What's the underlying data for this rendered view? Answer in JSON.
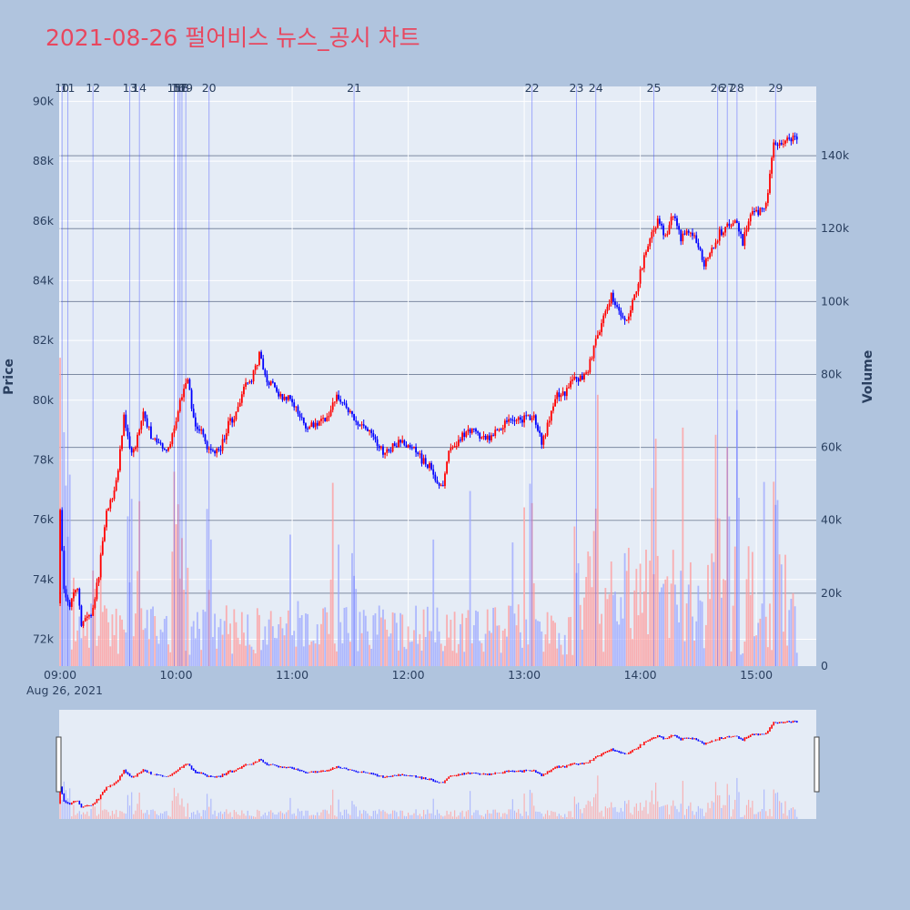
{
  "title": "2021-08-26 펄어비스 뉴스_공시 차트",
  "chart_data": {
    "type": "candlestick",
    "title": "2021-08-26 펄어비스 뉴스_공시 차트",
    "date_label": "Aug 26, 2021",
    "y_price_label": "Price",
    "y_volume_label": "Volume",
    "price_range": [
      71100,
      90500
    ],
    "price_ticks": [
      72000,
      74000,
      76000,
      78000,
      80000,
      82000,
      84000,
      86000,
      88000,
      90000
    ],
    "price_tick_labels": [
      "72k",
      "74k",
      "76k",
      "78k",
      "80k",
      "82k",
      "84k",
      "86k",
      "88k",
      "90k"
    ],
    "volume_range": [
      0,
      159000
    ],
    "volume_ticks": [
      0,
      20000,
      40000,
      60000,
      80000,
      100000,
      120000,
      140000
    ],
    "volume_tick_labels": [
      "0",
      "20k",
      "40k",
      "60k",
      "80k",
      "100k",
      "120k",
      "140k"
    ],
    "time_range_minutes": [
      -0.5,
      391
    ],
    "x_ticks": [
      "09:00",
      "10:00",
      "11:00",
      "12:00",
      "13:00",
      "14:00",
      "15:00"
    ],
    "increasing_color": "#ff0000",
    "decreasing_color": "#0000ff",
    "news_markers": [
      {
        "label": "10",
        "time": "09:01"
      },
      {
        "label": "11",
        "time": "09:04"
      },
      {
        "label": "12",
        "time": "09:17"
      },
      {
        "label": "13",
        "time": "09:36"
      },
      {
        "label": "14",
        "time": "09:41"
      },
      {
        "label": "15",
        "time": "09:59"
      },
      {
        "label": "16",
        "time": "10:01"
      },
      {
        "label": "17",
        "time": "10:02"
      },
      {
        "label": "18",
        "time": "10:03"
      },
      {
        "label": "19",
        "time": "10:05"
      },
      {
        "label": "20",
        "time": "10:17"
      },
      {
        "label": "21",
        "time": "11:32"
      },
      {
        "label": "22",
        "time": "13:04"
      },
      {
        "label": "23",
        "time": "13:27"
      },
      {
        "label": "24",
        "time": "13:37"
      },
      {
        "label": "25",
        "time": "14:07"
      },
      {
        "label": "26",
        "time": "14:40"
      },
      {
        "label": "27",
        "time": "14:45"
      },
      {
        "label": "28",
        "time": "14:50"
      },
      {
        "label": "29",
        "time": "15:10"
      }
    ],
    "price_path": [
      [
        0,
        73200
      ],
      [
        1,
        76200
      ],
      [
        3,
        73600
      ],
      [
        6,
        73200
      ],
      [
        10,
        73800
      ],
      [
        12,
        72400
      ],
      [
        14,
        72600
      ],
      [
        18,
        73000
      ],
      [
        21,
        74200
      ],
      [
        25,
        76200
      ],
      [
        30,
        77200
      ],
      [
        34,
        79400
      ],
      [
        38,
        78200
      ],
      [
        40,
        78500
      ],
      [
        44,
        79600
      ],
      [
        48,
        78800
      ],
      [
        52,
        78500
      ],
      [
        56,
        78300
      ],
      [
        60,
        79000
      ],
      [
        64,
        80200
      ],
      [
        67,
        80800
      ],
      [
        70,
        79300
      ],
      [
        74,
        79000
      ],
      [
        78,
        78300
      ],
      [
        81,
        78200
      ],
      [
        84,
        78400
      ],
      [
        88,
        79200
      ],
      [
        92,
        79500
      ],
      [
        96,
        80400
      ],
      [
        100,
        80700
      ],
      [
        104,
        81500
      ],
      [
        108,
        80700
      ],
      [
        112,
        80400
      ],
      [
        116,
        80000
      ],
      [
        120,
        80100
      ],
      [
        124,
        79600
      ],
      [
        128,
        79000
      ],
      [
        132,
        79200
      ],
      [
        136,
        79300
      ],
      [
        140,
        79500
      ],
      [
        144,
        80200
      ],
      [
        148,
        79800
      ],
      [
        152,
        79500
      ],
      [
        156,
        79200
      ],
      [
        160,
        79000
      ],
      [
        164,
        78600
      ],
      [
        168,
        78300
      ],
      [
        172,
        78400
      ],
      [
        176,
        78600
      ],
      [
        180,
        78500
      ],
      [
        184,
        78400
      ],
      [
        188,
        78000
      ],
      [
        192,
        77800
      ],
      [
        196,
        77300
      ],
      [
        199,
        77200
      ],
      [
        202,
        78200
      ],
      [
        206,
        78500
      ],
      [
        210,
        78900
      ],
      [
        214,
        79000
      ],
      [
        218,
        78800
      ],
      [
        222,
        78700
      ],
      [
        226,
        78900
      ],
      [
        230,
        79200
      ],
      [
        234,
        79400
      ],
      [
        238,
        79300
      ],
      [
        242,
        79400
      ],
      [
        246,
        79500
      ],
      [
        250,
        78600
      ],
      [
        254,
        79300
      ],
      [
        258,
        80200
      ],
      [
        262,
        80200
      ],
      [
        266,
        80800
      ],
      [
        270,
        80700
      ],
      [
        274,
        81000
      ],
      [
        278,
        82000
      ],
      [
        282,
        82800
      ],
      [
        286,
        83500
      ],
      [
        290,
        83000
      ],
      [
        294,
        82700
      ],
      [
        298,
        83500
      ],
      [
        302,
        84500
      ],
      [
        306,
        85500
      ],
      [
        310,
        86000
      ],
      [
        314,
        85500
      ],
      [
        318,
        86200
      ],
      [
        322,
        85400
      ],
      [
        326,
        85700
      ],
      [
        330,
        85300
      ],
      [
        334,
        84500
      ],
      [
        338,
        85000
      ],
      [
        342,
        85600
      ],
      [
        346,
        85800
      ],
      [
        350,
        86000
      ],
      [
        354,
        85300
      ],
      [
        358,
        86200
      ],
      [
        362,
        86300
      ],
      [
        366,
        86500
      ],
      [
        370,
        88500
      ],
      [
        374,
        88600
      ],
      [
        378,
        88700
      ],
      [
        382,
        88800
      ],
      [
        386,
        87600
      ],
      [
        390,
        88000
      ]
    ]
  }
}
